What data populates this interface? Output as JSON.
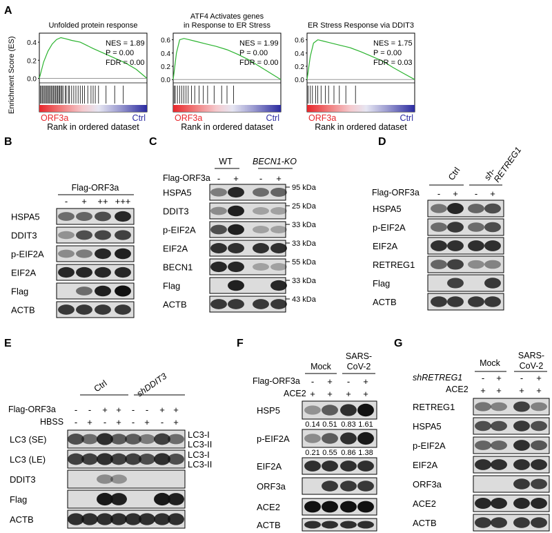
{
  "panelA": {
    "label": "A",
    "y_axis_label": "Enrichment Score (ES)",
    "x_axis_label": "Rank in ordered dataset",
    "bar_left_label": "ORF3a",
    "bar_right_label": "Ctrl",
    "plots": [
      {
        "title": "Unfolded protein response",
        "nes": "NES = 1.89",
        "p": "P = 0.00",
        "fdr": "FDR = 0.00",
        "yticks": [
          "0.4",
          "0.2",
          "0.0"
        ],
        "chart_data": {
          "type": "line",
          "x": [
            0,
            0.04,
            0.08,
            0.12,
            0.16,
            0.2,
            0.24,
            0.3,
            0.38,
            0.5,
            0.65,
            0.8,
            0.9,
            1.0
          ],
          "y": [
            0,
            0.18,
            0.3,
            0.38,
            0.43,
            0.45,
            0.44,
            0.42,
            0.4,
            0.33,
            0.25,
            0.17,
            0.1,
            0.0
          ],
          "ylim": [
            -0.05,
            0.5
          ]
        },
        "hits": [
          0.01,
          0.02,
          0.03,
          0.04,
          0.05,
          0.06,
          0.07,
          0.08,
          0.09,
          0.1,
          0.11,
          0.12,
          0.13,
          0.14,
          0.15,
          0.16,
          0.17,
          0.18,
          0.19,
          0.2,
          0.21,
          0.22,
          0.24,
          0.25,
          0.27,
          0.28,
          0.3,
          0.32,
          0.34,
          0.36,
          0.38,
          0.4,
          0.42,
          0.45,
          0.48,
          0.5,
          0.52,
          0.55,
          0.62,
          0.7,
          0.78
        ]
      },
      {
        "title": "ATF4 Activates genes\nin Response to ER Stress",
        "title_lines": [
          "ATF4 Activates genes",
          "in Response to ER Stress"
        ],
        "nes": "NES = 1.99",
        "p": "P = 0.00",
        "fdr": "FDR = 0.00",
        "yticks": [
          "0.6",
          "0.4",
          "0.2",
          "0.0"
        ],
        "chart_data": {
          "type": "line",
          "x": [
            0,
            0.03,
            0.06,
            0.1,
            0.15,
            0.2,
            0.3,
            0.4,
            0.5,
            0.6,
            0.7,
            0.8,
            0.9,
            1.0
          ],
          "y": [
            0,
            0.4,
            0.6,
            0.62,
            0.6,
            0.58,
            0.54,
            0.5,
            0.45,
            0.38,
            0.3,
            0.2,
            0.1,
            0.0
          ],
          "ylim": [
            -0.05,
            0.7
          ]
        },
        "hits": [
          0.01,
          0.02,
          0.04,
          0.06,
          0.08,
          0.1,
          0.12,
          0.14,
          0.17,
          0.2,
          0.24,
          0.28,
          0.32,
          0.38,
          0.45,
          0.5,
          0.56
        ]
      },
      {
        "title": "ER Stress Response via DDIT3",
        "nes": "NES = 1.75",
        "p": "P = 0.00",
        "fdr": "FDR = 0.03",
        "yticks": [
          "0.6",
          "0.4",
          "0.2",
          "0.0"
        ],
        "chart_data": {
          "type": "line",
          "x": [
            0,
            0.03,
            0.06,
            0.1,
            0.15,
            0.2,
            0.3,
            0.4,
            0.5,
            0.6,
            0.7,
            0.8,
            0.9,
            1.0
          ],
          "y": [
            0,
            0.35,
            0.55,
            0.6,
            0.58,
            0.56,
            0.52,
            0.48,
            0.42,
            0.35,
            0.28,
            0.18,
            0.09,
            0.0
          ],
          "ylim": [
            -0.05,
            0.7
          ]
        },
        "hits": [
          0.01,
          0.03,
          0.05,
          0.08,
          0.1,
          0.13,
          0.17,
          0.2,
          0.25,
          0.3,
          0.36,
          0.45
        ]
      }
    ]
  },
  "panelB": {
    "label": "B",
    "treatment": "Flag-ORF3a",
    "lanes": [
      "-",
      "+",
      "++",
      "+++"
    ],
    "rows": [
      "HSPA5",
      "DDIT3",
      "p-EIF2A",
      "EIF2A",
      "Flag",
      "ACTB"
    ]
  },
  "panelC": {
    "label": "C",
    "group1": "WT",
    "group2": "BECN1-KO",
    "treatment": "Flag-ORF3a",
    "lanes": [
      "-",
      "+",
      "-",
      "+"
    ],
    "rows": [
      "HSPA5",
      "DDIT3",
      "p-EIF2A",
      "EIF2A",
      "BECN1",
      "Flag",
      "ACTB"
    ],
    "markers": [
      "95 kDa",
      "25 kDa",
      "33 kDa",
      "33 kDa",
      "55 kDa",
      "33 kDa",
      "43 kDa"
    ]
  },
  "panelD": {
    "label": "D",
    "group1": "Ctrl",
    "group2_line1": "sh-",
    "group2_line2": "RETREG1",
    "treatment": "Flag-ORF3a",
    "lanes": [
      "-",
      "+",
      "-",
      "+"
    ],
    "rows": [
      "HSPA5",
      "p-EIF2A",
      "EIF2A",
      "RETREG1",
      "Flag",
      "ACTB"
    ]
  },
  "panelE": {
    "label": "E",
    "group1": "Ctrl",
    "group2": "shDDIT3",
    "treat1": "Flag-ORF3a",
    "treat2": "HBSS",
    "lanes1": [
      "-",
      "-",
      "+",
      "+",
      "-",
      "-",
      "+",
      "+"
    ],
    "lanes2": [
      "-",
      "+",
      "-",
      "+",
      "-",
      "+",
      "-",
      "+"
    ],
    "rows": [
      "LC3 (SE)",
      "LC3 (LE)",
      "DDIT3",
      "Flag",
      "ACTB"
    ],
    "lc3_1": "LC3-I",
    "lc3_2": "LC3-II"
  },
  "panelF": {
    "label": "F",
    "group1": "Mock",
    "group2": "SARS-\nCoV-2",
    "group2_l1": "SARS-",
    "group2_l2": "CoV-2",
    "treat1": "Flag-ORF3a",
    "treat2": "ACE2",
    "lanes1": [
      "-",
      "+",
      "-",
      "+"
    ],
    "lanes2": [
      "+",
      "+",
      "+",
      "+"
    ],
    "rows": [
      "HSP5",
      "p-EIF2A",
      "EIF2A",
      "ORF3a",
      "ACE2",
      "ACTB"
    ],
    "quant1": [
      "0.14",
      "0.51",
      "0.83",
      "1.61"
    ],
    "quant2": [
      "0.21",
      "0.55",
      "0.86",
      "1.38"
    ]
  },
  "panelG": {
    "label": "G",
    "group1": "Mock",
    "group2_l1": "SARS-",
    "group2_l2": "CoV-2",
    "treat1": "shRETREG1",
    "treat2": "ACE2",
    "lanes1": [
      "-",
      "+",
      "-",
      "+"
    ],
    "lanes2": [
      "+",
      "+",
      "+",
      "+"
    ],
    "rows": [
      "RETREG1",
      "HSPA5",
      "p-EIF2A",
      "EIF2A",
      "ORF3a",
      "ACE2",
      "ACTB"
    ]
  }
}
